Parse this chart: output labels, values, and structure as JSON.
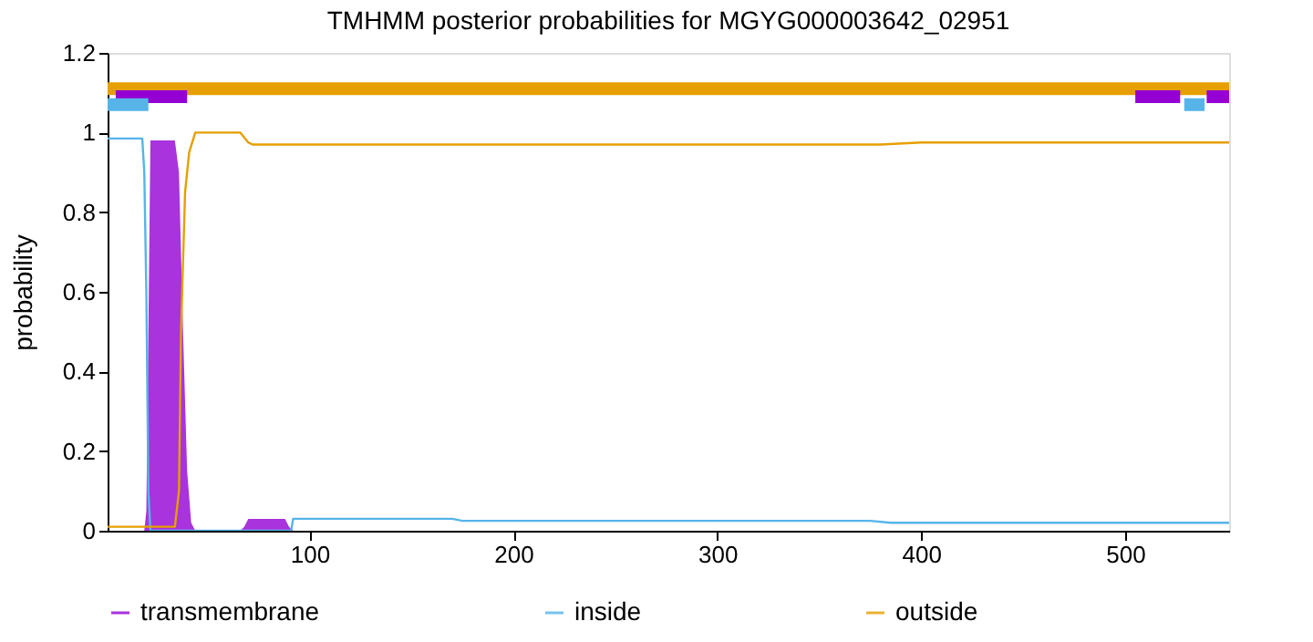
{
  "chart_data": {
    "type": "line",
    "title": "TMHMM posterior probabilities for MGYG000003642_02951",
    "ylabel": "probability",
    "xlim": [
      1,
      551
    ],
    "xticks": [
      100,
      200,
      300,
      400,
      500
    ],
    "ylim": [
      0,
      1.2
    ],
    "yticks": [
      0,
      0.2,
      0.4,
      0.6,
      0.8,
      1,
      1.2
    ],
    "grid": false,
    "legend": "bottom",
    "marker": "none",
    "line_style": "solid",
    "series": [
      {
        "name": "transmembrane",
        "type": "area",
        "color": "#9400d3",
        "x": [
          1,
          19,
          20,
          21,
          22,
          34,
          36,
          38,
          40,
          42,
          44,
          66,
          68,
          70,
          72,
          88,
          90,
          92,
          94,
          551
        ],
        "values": [
          0,
          0,
          0.05,
          0.5,
          0.98,
          0.98,
          0.9,
          0.5,
          0.15,
          0.02,
          0,
          0,
          0.01,
          0.03,
          0.03,
          0.03,
          0.01,
          0,
          0,
          0
        ]
      },
      {
        "name": "inside",
        "color": "#56b4e9",
        "x": [
          1,
          18,
          19,
          20,
          21,
          22,
          91,
          92,
          170,
          175,
          375,
          385,
          551
        ],
        "values": [
          0.985,
          0.985,
          0.9,
          0.6,
          0.1,
          0,
          0,
          0.03,
          0.03,
          0.025,
          0.025,
          0.02,
          0.02
        ]
      },
      {
        "name": "outside",
        "color": "#e69f00",
        "x": [
          1,
          34,
          36,
          37,
          39,
          41,
          44,
          66,
          70,
          72,
          380,
          400,
          551
        ],
        "values": [
          0.01,
          0.01,
          0.1,
          0.5,
          0.85,
          0.95,
          1.0,
          1.0,
          0.975,
          0.97,
          0.97,
          0.975,
          0.975
        ]
      },
      {
        "color": "#e69f00",
        "x": [
          1,
          551
        ],
        "values": [
          1.11,
          1.11
        ]
      },
      {
        "color": "#9400d3",
        "x": [
          5,
          40,
          41,
          505,
          527,
          528,
          540,
          551
        ],
        "values": [
          1.09,
          1.09,
          null,
          1.09,
          1.09,
          null,
          1.09,
          1.09
        ]
      },
      {
        "color": "#56b4e9",
        "x": [
          1,
          21,
          22,
          529,
          539
        ],
        "values": [
          1.07,
          1.07,
          null,
          1.07,
          1.07
        ]
      }
    ]
  }
}
